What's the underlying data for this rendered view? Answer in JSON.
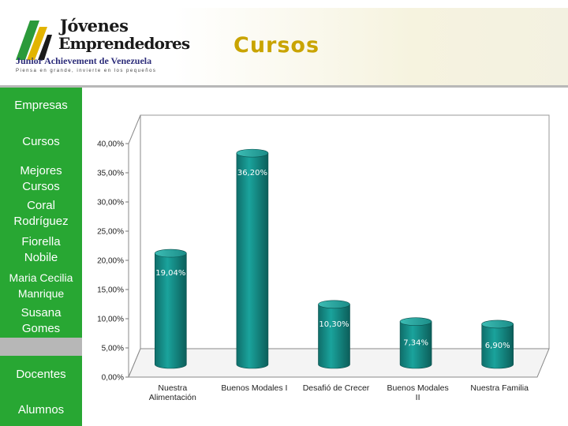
{
  "header": {
    "logo": {
      "title_line1": "Jóvenes",
      "title_line2": "Emprendedores",
      "org": "Junior Achievement de Venezuela",
      "tagline": "Piensa en grande, invierte en los pequeños"
    },
    "page_title": "Cursos"
  },
  "sidebar": {
    "items": [
      {
        "label": "Empresas"
      },
      {
        "label": "Cursos"
      },
      {
        "label": "Mejores Cursos"
      },
      {
        "label": "Coral Rodríguez"
      },
      {
        "label": "Fiorella Nobile"
      },
      {
        "label": "Maria Cecilia Manrique"
      },
      {
        "label": "Susana Gomes"
      },
      {
        "label": "Docentes"
      },
      {
        "label": "Alumnos"
      }
    ]
  },
  "colors": {
    "sidebar_bg": "#28a733",
    "bar": "#1a8f8a",
    "title": "#c9a400"
  },
  "chart_data": {
    "type": "bar",
    "categories": [
      "Nuestra Alimentación",
      "Buenos Modales I",
      "Desafió de Crecer",
      "Buenos Modales II",
      "Nuestra Familia"
    ],
    "values": [
      19.04,
      36.2,
      10.3,
      7.34,
      6.9
    ],
    "data_labels": [
      "19,04%",
      "36,20%",
      "10,30%",
      "7,34%",
      "6,90%"
    ],
    "yticks": [
      "0,00%",
      "5,00%",
      "10,00%",
      "15,00%",
      "20,00%",
      "25,00%",
      "30,00%",
      "35,00%",
      "40,00%"
    ],
    "ylim": [
      0,
      40
    ],
    "grid": false,
    "title": "",
    "xlabel": "",
    "ylabel": ""
  }
}
